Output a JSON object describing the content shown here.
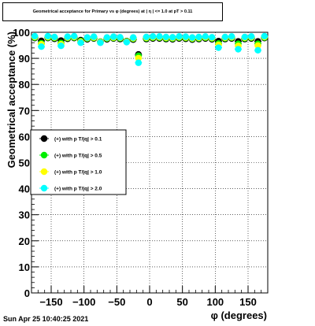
{
  "timestamp": "Sun Apr 25 10:40:25 2021",
  "chart_data": {
    "type": "scatter",
    "title": "Geometrical acceptance for Primary vs φ (degrees) at | η | <= 1.0 at pT > 0.11",
    "xlabel": "φ (degrees)",
    "ylabel": "Geometrical acceptance (%)",
    "xlim": [
      -180,
      180
    ],
    "ylim": [
      0,
      100
    ],
    "xticks": [
      -150,
      -100,
      -50,
      0,
      50,
      100,
      150
    ],
    "xtick_labels": [
      "−150",
      "−100",
      "−50",
      "0",
      "50",
      "100",
      "150"
    ],
    "yticks": [
      0,
      10,
      20,
      30,
      40,
      50,
      60,
      70,
      80,
      90,
      100
    ],
    "ytick_labels": [
      "0",
      "10",
      "20",
      "30",
      "40",
      "50",
      "60",
      "70",
      "80",
      "90",
      "100"
    ],
    "grid": true,
    "legend_position": "center-left",
    "x": [
      -175,
      -165,
      -155,
      -145,
      -135,
      -125,
      -115,
      -105,
      -95,
      -85,
      -75,
      -65,
      -55,
      -45,
      -35,
      -25,
      -17,
      -5,
      5,
      15,
      25,
      35,
      45,
      55,
      65,
      75,
      85,
      95,
      105,
      115,
      125,
      135,
      145,
      155,
      165,
      175
    ],
    "series": [
      {
        "name": "(+) with p T/|q| > 0.1",
        "color": "#000000",
        "values": [
          97.8,
          96.7,
          97.8,
          97.5,
          96.8,
          97.5,
          97.8,
          97.0,
          97.3,
          97.6,
          96.4,
          97.3,
          97.6,
          97.4,
          96.6,
          97.2,
          91.5,
          97.4,
          97.6,
          97.6,
          97.4,
          97.3,
          97.6,
          97.5,
          97.2,
          97.4,
          97.6,
          97.3,
          96.6,
          97.4,
          97.6,
          96.5,
          97.4,
          97.6,
          96.5,
          97.8
        ]
      },
      {
        "name": "(+) with p T/|q| > 0.5",
        "color": "#00ee00",
        "values": [
          98.0,
          95.8,
          98.0,
          97.8,
          95.9,
          97.8,
          98.0,
          96.6,
          97.6,
          97.8,
          96.3,
          97.6,
          97.8,
          97.7,
          96.5,
          97.5,
          91.0,
          97.7,
          97.9,
          97.9,
          97.7,
          97.6,
          97.9,
          97.8,
          97.5,
          97.7,
          97.9,
          97.6,
          95.7,
          97.7,
          97.9,
          95.6,
          97.7,
          97.9,
          95.6,
          98.0
        ]
      },
      {
        "name": "(+) with p T/|q| > 1.0",
        "color": "#ffff00",
        "values": [
          98.2,
          95.4,
          98.2,
          98.0,
          95.4,
          98.0,
          98.2,
          96.4,
          97.8,
          98.0,
          96.2,
          97.8,
          98.0,
          97.9,
          96.4,
          97.7,
          90.1,
          97.9,
          98.1,
          98.1,
          97.9,
          97.8,
          98.1,
          98.0,
          97.7,
          97.9,
          98.1,
          97.8,
          95.2,
          97.9,
          98.1,
          94.8,
          97.9,
          98.1,
          94.9,
          98.2
        ]
      },
      {
        "name": "(+) with p T/|q| > 2.0",
        "color": "#00ffff",
        "values": [
          98.5,
          94.5,
          98.5,
          98.2,
          94.8,
          98.3,
          98.5,
          96.0,
          98.0,
          98.3,
          96.0,
          98.0,
          98.3,
          98.1,
          96.2,
          98.0,
          88.3,
          98.2,
          98.4,
          98.4,
          98.2,
          98.1,
          98.4,
          98.3,
          98.0,
          98.2,
          98.4,
          98.1,
          94.1,
          98.2,
          98.4,
          93.5,
          98.2,
          98.4,
          93.1,
          98.5
        ]
      }
    ]
  }
}
